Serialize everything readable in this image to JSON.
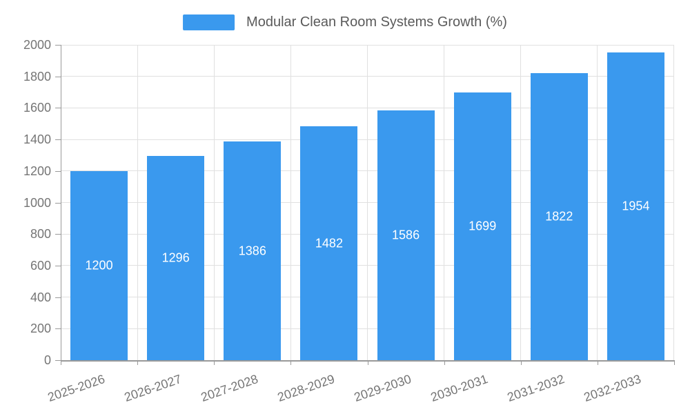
{
  "legend": {
    "label": "Modular Clean Room Systems Growth (%)"
  },
  "colors": {
    "bar": "#3a99ee",
    "grid": "#e0e0e0",
    "axis": "#999999",
    "tick_label": "#757575",
    "value_label": "#ffffff",
    "legend_text": "#5a5a5a",
    "background": "#ffffff"
  },
  "chart_data": {
    "type": "bar",
    "title": "Modular Clean Room Systems Growth (%)",
    "legend": [
      "Modular Clean Room Systems Growth (%)"
    ],
    "categories": [
      "2025-2026",
      "2026-2027",
      "2027-2028",
      "2028-2029",
      "2029-2030",
      "2030-2031",
      "2031-2032",
      "2032-2033"
    ],
    "values": [
      1200,
      1296,
      1386,
      1482,
      1586,
      1699,
      1822,
      1954
    ],
    "xlabel": "",
    "ylabel": "",
    "ylim": [
      0,
      2000
    ],
    "yticks": [
      0,
      200,
      400,
      600,
      800,
      1000,
      1200,
      1400,
      1600,
      1800,
      2000
    ],
    "grid": true,
    "legend_position": "top-center",
    "value_labels": "inside-center",
    "x_label_rotation_deg": -19
  }
}
